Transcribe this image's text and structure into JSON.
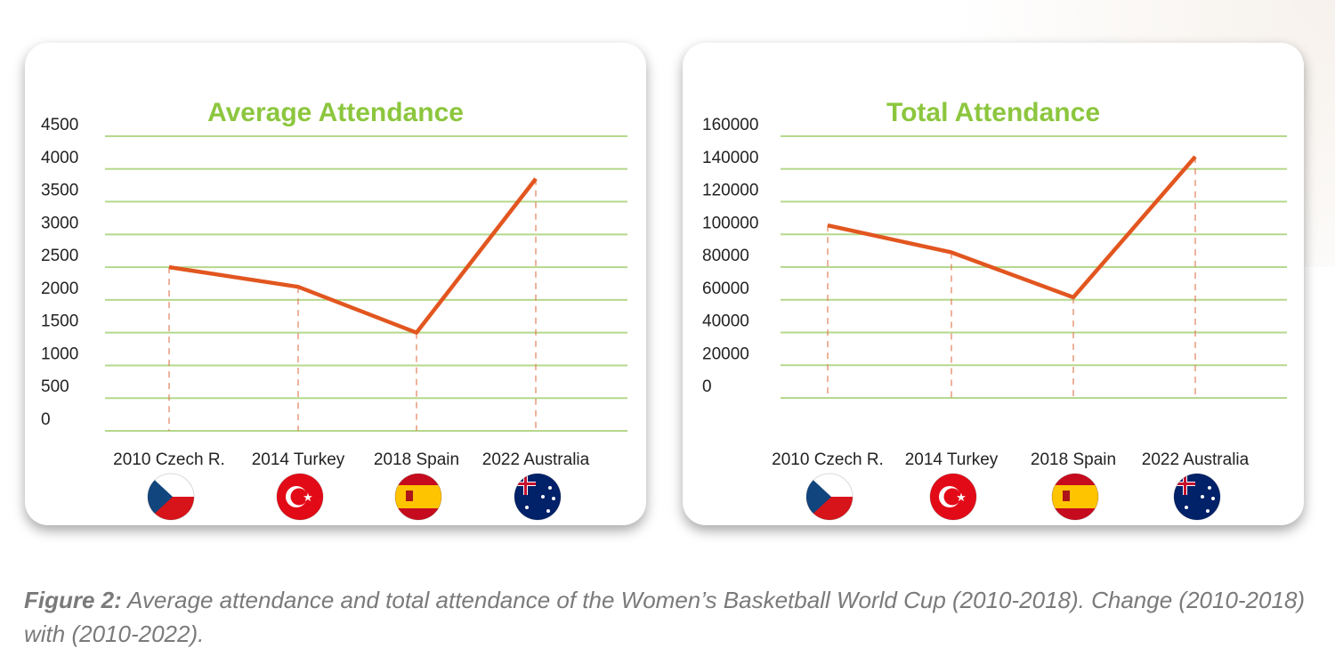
{
  "chart_data": [
    {
      "type": "line",
      "title": "Average Attendance",
      "categories": [
        "2010 Czech R.",
        "2014 Turkey",
        "2018 Spain",
        "2022 Australia"
      ],
      "flags": [
        "czech-flag",
        "turkey-flag",
        "spain-flag",
        "australia-flag"
      ],
      "values": [
        2500,
        2200,
        1500,
        3850
      ],
      "yticks": [
        0,
        500,
        1000,
        1500,
        2000,
        2500,
        3000,
        3500,
        4000,
        4500
      ],
      "ylim": [
        0,
        4500
      ],
      "xlabel": "",
      "ylabel": "",
      "grid": true,
      "line_color": "#e2561f",
      "grid_color": "#b5d88c"
    },
    {
      "type": "line",
      "title": "Total Attendance",
      "categories": [
        "2010 Czech R.",
        "2014 Turkey",
        "2018 Spain",
        "2022 Australia"
      ],
      "flags": [
        "czech-flag",
        "turkey-flag",
        "spain-flag",
        "australia-flag"
      ],
      "values": [
        105500,
        89000,
        61500,
        147500
      ],
      "yticks": [
        0,
        20000,
        40000,
        60000,
        80000,
        100000,
        120000,
        140000,
        160000
      ],
      "ylim": [
        0,
        160000
      ],
      "xlabel": "",
      "ylabel": "",
      "grid": true,
      "line_color": "#e2561f",
      "grid_color": "#b5d88c"
    }
  ],
  "caption": {
    "label": "Figure 2:",
    "text": " Average attendance and total attendance of the Women’s Basketball World Cup (2010-2018). Change (2010-2018) with (2010-2022)."
  }
}
